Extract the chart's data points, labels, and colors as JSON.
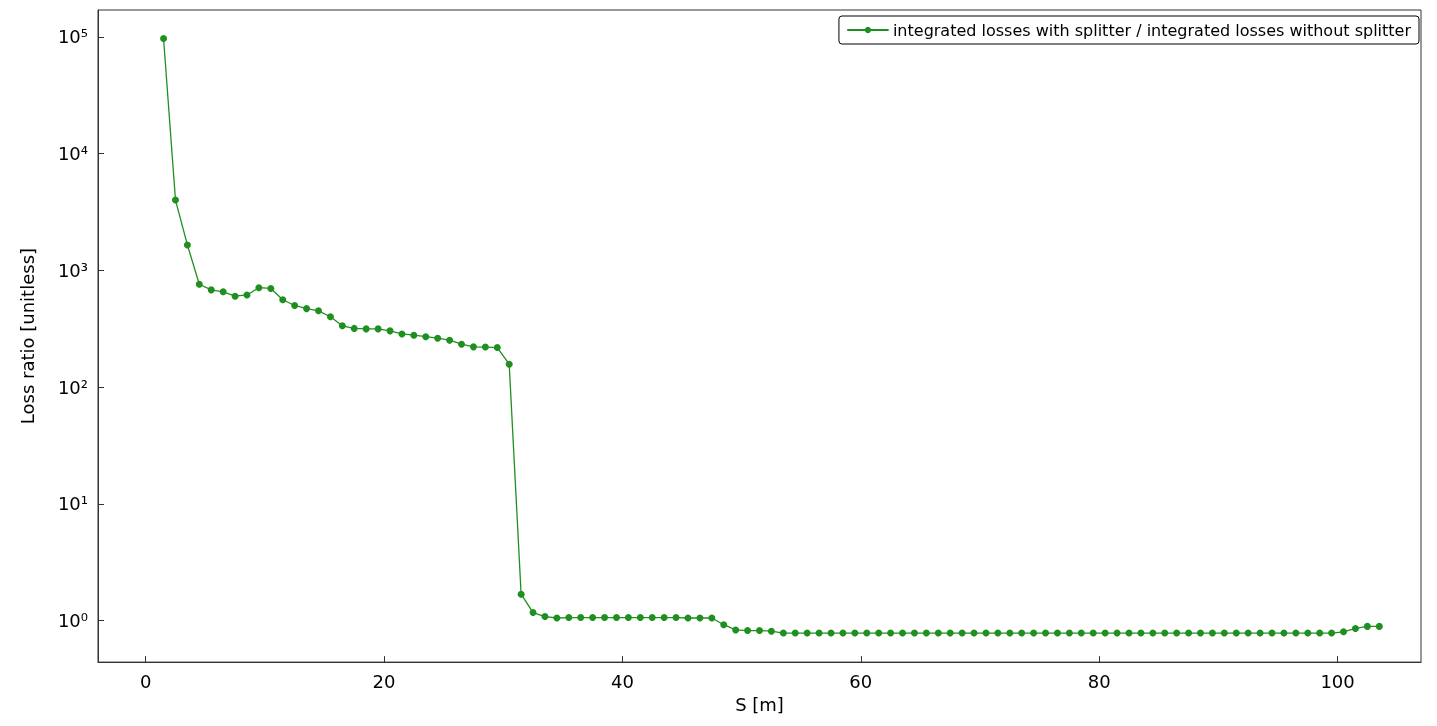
{
  "chart_data": {
    "type": "line",
    "xlabel": "S [m]",
    "ylabel": "Loss ratio [unitless]",
    "log": "y",
    "grid": false,
    "legend": "top right",
    "marker": "circle",
    "line_style": "solid",
    "xlim": [
      -4,
      107
    ],
    "xticks": [
      0,
      20,
      40,
      60,
      80,
      100
    ],
    "ylim": [
      0.44,
      170000
    ],
    "yticks": [
      {
        "value": 1,
        "label": "10⁰"
      },
      {
        "value": 10,
        "label": "10¹"
      },
      {
        "value": 100,
        "label": "10²"
      },
      {
        "value": 1000,
        "label": "10³"
      },
      {
        "value": 10000,
        "label": "10⁴"
      },
      {
        "value": 100000,
        "label": "10⁵"
      }
    ],
    "series": [
      {
        "name": "integrated losses with splitter / integrated losses without splitter",
        "color": "#1f8f1f",
        "x": [
          1.5,
          2.5,
          3.5,
          4.5,
          5.5,
          6.5,
          7.5,
          8.5,
          9.5,
          10.5,
          11.5,
          12.5,
          13.5,
          14.5,
          15.5,
          16.5,
          17.5,
          18.5,
          19.5,
          20.5,
          21.5,
          22.5,
          23.5,
          24.5,
          25.5,
          26.5,
          27.5,
          28.5,
          29.5,
          30.5,
          31.5,
          32.5,
          33.5,
          34.5,
          35.5,
          36.5,
          37.5,
          38.5,
          39.5,
          40.5,
          41.5,
          42.5,
          43.5,
          44.5,
          45.5,
          46.5,
          47.5,
          48.5,
          49.5,
          50.5,
          51.5,
          52.5,
          53.5,
          54.5,
          55.5,
          56.5,
          57.5,
          58.5,
          59.5,
          60.5,
          61.5,
          62.5,
          63.5,
          64.5,
          65.5,
          66.5,
          67.5,
          68.5,
          69.5,
          70.5,
          71.5,
          72.5,
          73.5,
          74.5,
          75.5,
          76.5,
          77.5,
          78.5,
          79.5,
          80.5,
          81.5,
          82.5,
          83.5,
          84.5,
          85.5,
          86.5,
          87.5,
          88.5,
          89.5,
          90.5,
          91.5,
          92.5,
          93.5,
          94.5,
          95.5,
          96.5,
          97.5,
          98.5,
          99.5,
          100.5,
          101.5,
          102.5,
          103.5
        ],
        "values": [
          97000,
          4000,
          1650,
          760,
          680,
          655,
          600,
          615,
          710,
          700,
          560,
          500,
          470,
          450,
          400,
          335,
          318,
          315,
          315,
          303,
          285,
          278,
          270,
          262,
          252,
          233,
          221,
          220,
          218,
          157,
          1.68,
          1.17,
          1.08,
          1.05,
          1.06,
          1.06,
          1.06,
          1.06,
          1.06,
          1.06,
          1.06,
          1.06,
          1.06,
          1.06,
          1.05,
          1.05,
          1.05,
          0.92,
          0.83,
          0.82,
          0.82,
          0.81,
          0.78,
          0.78,
          0.78,
          0.78,
          0.78,
          0.78,
          0.78,
          0.78,
          0.78,
          0.78,
          0.78,
          0.78,
          0.78,
          0.78,
          0.78,
          0.78,
          0.78,
          0.78,
          0.78,
          0.78,
          0.78,
          0.78,
          0.78,
          0.78,
          0.78,
          0.78,
          0.78,
          0.78,
          0.78,
          0.78,
          0.78,
          0.78,
          0.78,
          0.78,
          0.78,
          0.78,
          0.78,
          0.78,
          0.78,
          0.78,
          0.78,
          0.78,
          0.78,
          0.78,
          0.78,
          0.78,
          0.78,
          0.8,
          0.855,
          0.89,
          0.89
        ]
      }
    ]
  }
}
